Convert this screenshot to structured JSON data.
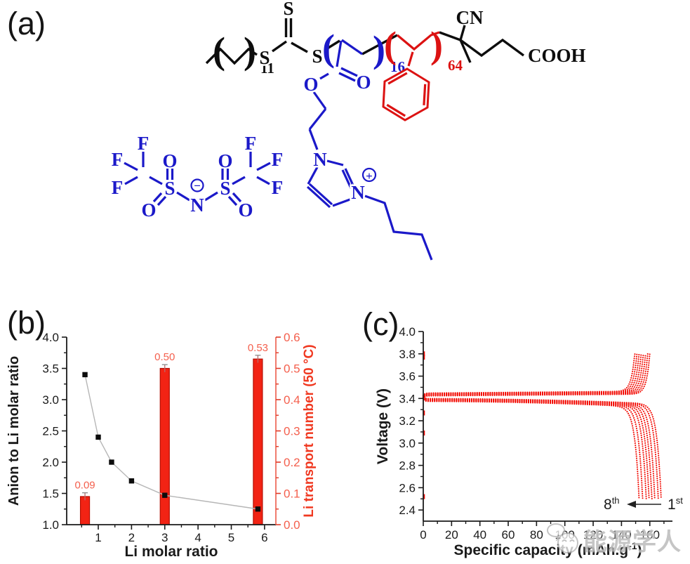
{
  "panel_a": {
    "label": "(a)",
    "labels": {
      "paren_open": "(",
      "paren_close": ")",
      "alkyl_repeat": "11",
      "s_left": "S",
      "s_thione": "S",
      "s_right": "S",
      "block1_repeat": "16",
      "block2_repeat": "64",
      "ester_o_single": "O",
      "ester_o_double": "O",
      "ring_n1": "N",
      "ring_n3": "N",
      "plus": "+",
      "minus": "−",
      "nitrile": "CN",
      "carboxyl": "COOH",
      "tfsi_f": "F",
      "tfsi_o": "O",
      "tfsi_s": "S",
      "tfsi_n": "N"
    },
    "colors": {
      "raft_black": "#0d0d0d",
      "ionic_blue": "#1b19c9",
      "styrene_red": "#dc1212"
    }
  },
  "chart_data": [
    {
      "panel_label": "(b)",
      "type": "line+bar dual-axis",
      "x_label": "Li molar ratio",
      "y_left_label": "Anion to Li molar ratio",
      "y_right_label": "Li transport number (50 °C)",
      "xlim": [
        0.05,
        6.34
      ],
      "x_major_ticks": [
        1,
        2,
        3,
        4,
        5,
        6
      ],
      "x_minor_ticks": [
        0.5,
        1.5,
        2.5,
        3.5,
        4.5,
        5.5
      ],
      "y_left_lim": [
        1.0,
        4.0
      ],
      "y_left_tick_labels": [
        "1.0",
        "1.5",
        "2.0",
        "2.5",
        "3.0",
        "3.5",
        "4.0"
      ],
      "y_right_lim": [
        0.0,
        0.6
      ],
      "y_right_tick_labels": [
        "0.0",
        "0.1",
        "0.2",
        "0.3",
        "0.4",
        "0.5",
        "0.6"
      ],
      "line_series": {
        "name": "anion_to_li_molar_ratio",
        "points": [
          [
            0.6,
            3.4
          ],
          [
            1.0,
            2.4
          ],
          [
            1.4,
            2.0
          ],
          [
            2.0,
            1.7
          ],
          [
            3.0,
            1.47
          ],
          [
            5.8,
            1.25
          ]
        ],
        "marker_color": "#0c0c0c",
        "line_color": "#b6b6b6"
      },
      "bar_series": {
        "name": "li_transport_number_50C",
        "x": [
          0.6,
          3.0,
          5.8
        ],
        "values": [
          0.09,
          0.5,
          0.53
        ],
        "errors": [
          0.012,
          0.012,
          0.012
        ],
        "value_labels": [
          "0.09",
          "0.50",
          "0.53"
        ],
        "bar_color": "#f22314",
        "bar_edge": "#b50d02",
        "label_color": "#f4604e"
      },
      "accent": {
        "right_axis": "#ef6e5e",
        "right_tick": "#e03a28",
        "right_label": "#f4604e",
        "right_title": "#f03820"
      }
    },
    {
      "panel_label": "(c)",
      "type": "charge-discharge voltage profiles (dotted)",
      "x_label_parts": {
        "main": "Specific capacity (mAh.g",
        "sup": "-1",
        "end": ")"
      },
      "y_label": "Voltage (V)",
      "xlim": [
        0,
        176
      ],
      "x_major_ticks": [
        0,
        20,
        40,
        60,
        80,
        100,
        120,
        140,
        160
      ],
      "ylim": [
        2.3,
        4.0
      ],
      "y_major_tick_labels": [
        "2.4",
        "2.6",
        "2.8",
        "3.0",
        "3.2",
        "3.4",
        "3.6",
        "3.8",
        "4.0"
      ],
      "curve_color": "#f20c04",
      "cycles": {
        "count": 8,
        "charge": {
          "plateau_v": 3.44,
          "top_v": 3.8,
          "end_capacities_1st_to_8th": [
            160,
            158.5,
            157,
            155.5,
            154,
            152.5,
            151,
            149.5
          ]
        },
        "discharge": {
          "plateau_v": 3.39,
          "cutoff_v": 2.5,
          "end_capacities_1st_to_8th": [
            168,
            166,
            163.5,
            161.5,
            159.5,
            157.5,
            155,
            152.5
          ]
        }
      },
      "left_axis_marks_v": [
        3.8,
        3.77,
        3.27,
        3.09,
        2.52
      ],
      "annotation": {
        "later_num": "8",
        "later_sup": "th",
        "arrow": "left",
        "earlier_num": "1",
        "earlier_sup": "st"
      }
    }
  ],
  "watermark": {
    "text": "能源学人"
  }
}
